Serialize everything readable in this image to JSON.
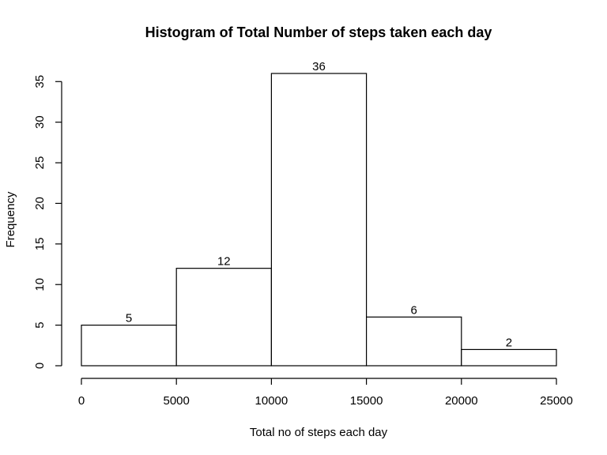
{
  "chart_data": {
    "type": "bar",
    "title": "Histogram of Total Number of steps taken each day",
    "xlabel": "Total no of steps each day",
    "ylabel": "Frequency",
    "bins": [
      {
        "from": 0,
        "to": 5000,
        "count": 5
      },
      {
        "from": 5000,
        "to": 10000,
        "count": 12
      },
      {
        "from": 10000,
        "to": 15000,
        "count": 36
      },
      {
        "from": 15000,
        "to": 20000,
        "count": 6
      },
      {
        "from": 20000,
        "to": 25000,
        "count": 2
      }
    ],
    "xticks": [
      "0",
      "5000",
      "10000",
      "15000",
      "20000",
      "25000"
    ],
    "yticks": [
      "0",
      "5",
      "10",
      "15",
      "20",
      "25",
      "30",
      "35"
    ],
    "xlim": [
      0,
      25000
    ],
    "ylim": [
      0,
      35
    ],
    "data_labels": [
      "5",
      "12",
      "36",
      "6",
      "2"
    ],
    "grid": false,
    "legend": "none",
    "bar_fill": "#ffffff",
    "bar_stroke": "#000000"
  }
}
